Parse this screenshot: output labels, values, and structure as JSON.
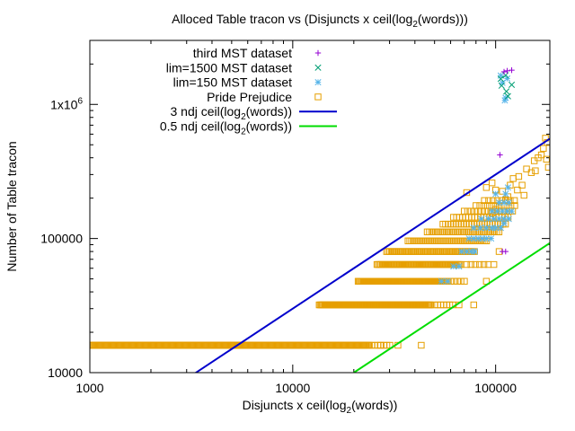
{
  "chart_data": {
    "type": "scatter",
    "title": "Alloced Table tracon vs (Disjuncts x ceil(log",
    "title_sub": "2",
    "title_end": "(words)))",
    "xlabel": "Disjuncts x ceil(log",
    "xlabel_sub": "2",
    "xlabel_end": "(words))",
    "ylabel": "Number of Table tracon",
    "x_scale": "log",
    "y_scale": "log",
    "xlim": [
      1000,
      185000
    ],
    "ylim": [
      10000,
      3000000
    ],
    "x_ticks": [
      {
        "value": 1000,
        "label": "1000"
      },
      {
        "value": 10000,
        "label": "10000"
      },
      {
        "value": 100000,
        "label": "100000"
      }
    ],
    "y_ticks": [
      {
        "value": 10000,
        "label": "10000"
      },
      {
        "value": 100000,
        "label": "100000"
      },
      {
        "value": 1000000,
        "label": "1x10",
        "sup": "6"
      }
    ],
    "legend_position": "top-left",
    "series": [
      {
        "name": "third MST dataset",
        "marker": "plus",
        "color": "#9400d3",
        "points": [
          [
            105000,
            420000
          ],
          [
            108000,
            80000
          ],
          [
            112000,
            80000
          ],
          [
            110000,
            1750000
          ],
          [
            114000,
            1780000
          ],
          [
            120000,
            1800000
          ]
        ]
      },
      {
        "name": "lim=1500 MST dataset",
        "marker": "cross",
        "color": "#009e73",
        "points": [
          [
            106000,
            1550000
          ],
          [
            107000,
            1380000
          ],
          [
            112000,
            1650000
          ],
          [
            113000,
            1250000
          ],
          [
            115000,
            1150000
          ],
          [
            120000,
            1400000
          ]
        ]
      },
      {
        "name": "lim=150 MST dataset",
        "marker": "star",
        "color": "#56b4e9",
        "points": [
          [
            106000,
            1640000
          ],
          [
            108000,
            1450000
          ],
          [
            111000,
            1070000
          ],
          [
            112000,
            1120000
          ],
          [
            114000,
            1560000
          ],
          [
            54000,
            48000
          ],
          [
            58000,
            48000
          ],
          [
            62000,
            62000
          ],
          [
            66000,
            62000
          ],
          [
            68000,
            80000
          ],
          [
            72000,
            80000
          ],
          [
            76000,
            80000
          ],
          [
            79000,
            80000
          ],
          [
            74000,
            100000
          ],
          [
            78000,
            100000
          ],
          [
            82000,
            100000
          ],
          [
            86000,
            100000
          ],
          [
            90000,
            100000
          ],
          [
            95000,
            100000
          ],
          [
            78000,
            120000
          ],
          [
            84000,
            120000
          ],
          [
            90000,
            120000
          ],
          [
            96000,
            120000
          ],
          [
            100000,
            120000
          ],
          [
            106000,
            120000
          ],
          [
            85000,
            140000
          ],
          [
            92000,
            140000
          ],
          [
            98000,
            140000
          ],
          [
            104000,
            140000
          ],
          [
            110000,
            140000
          ],
          [
            116000,
            140000
          ],
          [
            96000,
            160000
          ],
          [
            102000,
            160000
          ],
          [
            108000,
            160000
          ],
          [
            114000,
            160000
          ],
          [
            120000,
            160000
          ],
          [
            104000,
            185000
          ],
          [
            110000,
            185000
          ],
          [
            116000,
            185000
          ],
          [
            100000,
            215000
          ],
          [
            112000,
            215000
          ],
          [
            115000,
            240000
          ],
          [
            110000,
            130000
          ]
        ]
      },
      {
        "name": "Pride Prejudice",
        "marker": "square",
        "color": "#e69f00",
        "row_ranges": [
          {
            "y": 16000,
            "x_from": 1000,
            "x_to": 24000,
            "step": 1.011
          },
          {
            "y": 16000,
            "x_from": 24500,
            "x_to": 31000,
            "step": 1.035
          },
          {
            "y": 32000,
            "x_from": 13500,
            "x_to": 48000,
            "step": 1.012
          },
          {
            "y": 32000,
            "x_from": 50000,
            "x_to": 62000,
            "step": 1.035
          },
          {
            "y": 48000,
            "x_from": 21000,
            "x_to": 58000,
            "step": 1.012
          },
          {
            "y": 48000,
            "x_from": 60000,
            "x_to": 72000,
            "step": 1.04
          },
          {
            "y": 64000,
            "x_from": 26000,
            "x_to": 68000,
            "step": 1.015
          },
          {
            "y": 64000,
            "x_from": 72000,
            "x_to": 95000,
            "step": 1.05
          },
          {
            "y": 80000,
            "x_from": 29000,
            "x_to": 80000,
            "step": 1.018
          },
          {
            "y": 96000,
            "x_from": 37000,
            "x_to": 92000,
            "step": 1.02
          },
          {
            "y": 112000,
            "x_from": 46000,
            "x_to": 105000,
            "step": 1.025
          },
          {
            "y": 128000,
            "x_from": 55000,
            "x_to": 112000,
            "step": 1.03
          },
          {
            "y": 144000,
            "x_from": 62000,
            "x_to": 118000,
            "step": 1.035
          },
          {
            "y": 160000,
            "x_from": 70000,
            "x_to": 122000,
            "step": 1.04
          },
          {
            "y": 176000,
            "x_from": 80000,
            "x_to": 125000,
            "step": 1.045
          },
          {
            "y": 192000,
            "x_from": 88000,
            "x_to": 128000,
            "step": 1.05
          }
        ],
        "points": [
          [
            43000,
            16000
          ],
          [
            33000,
            16000
          ],
          [
            27000,
            16000
          ],
          [
            78000,
            32000
          ],
          [
            66000,
            32000
          ],
          [
            90000,
            48000
          ],
          [
            98000,
            64000
          ],
          [
            104000,
            80000
          ],
          [
            72000,
            220000
          ],
          [
            90000,
            240000
          ],
          [
            96000,
            260000
          ],
          [
            100000,
            230000
          ],
          [
            108000,
            225000
          ],
          [
            115000,
            205000
          ],
          [
            118000,
            250000
          ],
          [
            122000,
            280000
          ],
          [
            130000,
            290000
          ],
          [
            138000,
            210000
          ],
          [
            142000,
            330000
          ],
          [
            150000,
            310000
          ],
          [
            155000,
            380000
          ],
          [
            162000,
            400000
          ],
          [
            168000,
            420000
          ],
          [
            172000,
            470000
          ],
          [
            176000,
            560000
          ],
          [
            180000,
            520000
          ],
          [
            182000,
            340000
          ],
          [
            178000,
            390000
          ],
          [
            157000,
            320000
          ],
          [
            135000,
            250000
          ],
          [
            128000,
            230000
          ],
          [
            112000,
            195000
          ],
          [
            104000,
            175000
          ],
          [
            100000,
            165000
          ],
          [
            96000,
            155000
          ]
        ]
      },
      {
        "name": "3 ndj ceil(log",
        "name_sub": "2",
        "name_end": "(words))",
        "marker": "line",
        "color": "#0000cc",
        "coefficient": 3,
        "line": [
          [
            3300,
            9900
          ],
          [
            185000,
            555000
          ]
        ]
      },
      {
        "name": "0.5 ndj ceil(log",
        "name_sub": "2",
        "name_end": "(words))",
        "marker": "line",
        "color": "#00dd00",
        "coefficient": 0.5,
        "line": [
          [
            20000,
            10000
          ],
          [
            185000,
            92500
          ]
        ]
      }
    ]
  }
}
